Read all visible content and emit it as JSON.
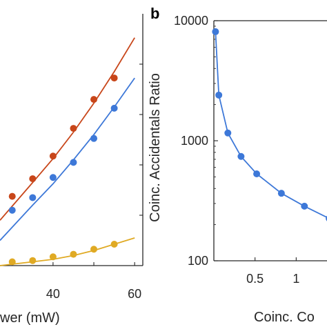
{
  "chart_data": [
    {
      "type": "scatter",
      "panel_label": "",
      "xlabel": "wer (mW)",
      "ylabel": "",
      "xlim": [
        27,
        62
      ],
      "ylim": [
        0,
        1
      ],
      "x_ticks": [
        {
          "value": 40,
          "label": "40"
        },
        {
          "value": 60,
          "label": "60"
        }
      ],
      "x_tick_marks": [
        30,
        40,
        50,
        60
      ],
      "y_tick_marks": [
        0.2,
        0.4,
        0.6,
        0.8
      ],
      "grid": false,
      "colors": {
        "series_a": "#c8461a",
        "series_b": "#3d78d8",
        "series_c": "#e0aa24",
        "axis": "#262626"
      },
      "series": [
        {
          "color": "#c8461a",
          "points": [
            [
              30,
              0.275
            ],
            [
              35,
              0.345
            ],
            [
              40,
              0.435
            ],
            [
              45,
              0.545
            ],
            [
              50,
              0.66
            ],
            [
              55,
              0.745
            ]
          ],
          "fit": [
            [
              27,
              0.18
            ],
            [
              35,
              0.33
            ],
            [
              40,
              0.425
            ],
            [
              45,
              0.53
            ],
            [
              50,
              0.645
            ],
            [
              55,
              0.77
            ],
            [
              60,
              0.905
            ]
          ]
        },
        {
          "color": "#3d78d8",
          "points": [
            [
              30,
              0.22
            ],
            [
              35,
              0.27
            ],
            [
              40,
              0.35
            ],
            [
              45,
              0.41
            ],
            [
              50,
              0.505
            ],
            [
              55,
              0.625
            ]
          ],
          "fit": [
            [
              27,
              0.1
            ],
            [
              35,
              0.24
            ],
            [
              40,
              0.325
            ],
            [
              45,
              0.42
            ],
            [
              50,
              0.52
            ],
            [
              55,
              0.63
            ],
            [
              60,
              0.745
            ]
          ]
        },
        {
          "color": "#e0aa24",
          "points": [
            [
              30,
              0.015
            ],
            [
              35,
              0.02
            ],
            [
              40,
              0.035
            ],
            [
              45,
              0.045
            ],
            [
              50,
              0.065
            ],
            [
              55,
              0.085
            ]
          ],
          "fit": [
            [
              27,
              0.0
            ],
            [
              35,
              0.015
            ],
            [
              40,
              0.025
            ],
            [
              45,
              0.04
            ],
            [
              50,
              0.06
            ],
            [
              55,
              0.085
            ],
            [
              60,
              0.11
            ]
          ]
        }
      ]
    },
    {
      "type": "line",
      "panel_label": "b",
      "xlabel": "Coinc. Co",
      "ylabel": "Coinc. Accidentals Ratio",
      "yscale": "log",
      "xlim": [
        0,
        1.55
      ],
      "ylim": [
        100,
        10000
      ],
      "x_ticks": [
        {
          "value": 0.5,
          "label": "0.5"
        },
        {
          "value": 1,
          "label": "1"
        }
      ],
      "y_ticks": [
        {
          "value": 100,
          "label": "100"
        },
        {
          "value": 1000,
          "label": "1000"
        },
        {
          "value": 10000,
          "label": "10000"
        }
      ],
      "grid": false,
      "colors": {
        "line": "#3d78d8",
        "axis": "#262626"
      },
      "series": [
        {
          "color": "#3d78d8",
          "points": [
            [
              0.02,
              8100
            ],
            [
              0.06,
              2400
            ],
            [
              0.17,
              1160
            ],
            [
              0.33,
              740
            ],
            [
              0.52,
              530
            ],
            [
              0.82,
              365
            ],
            [
              1.1,
              285
            ],
            [
              1.4,
              225
            ]
          ]
        }
      ]
    }
  ]
}
